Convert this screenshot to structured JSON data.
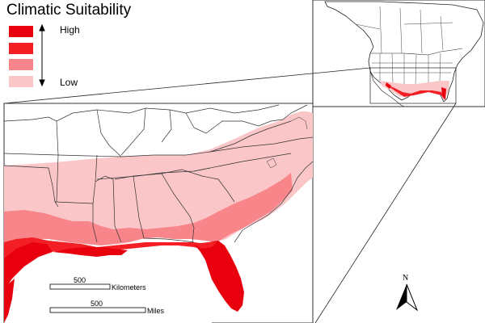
{
  "legend": {
    "title": "Climatic Suitability",
    "high_label": "High",
    "low_label": "Low",
    "classes": [
      {
        "level": "highest",
        "color": "#e8000e"
      },
      {
        "level": "high",
        "color": "#f31f25"
      },
      {
        "level": "medium",
        "color": "#f7858a"
      },
      {
        "level": "low",
        "color": "#fbc6c8"
      }
    ]
  },
  "scale_bar": {
    "km_value": "500",
    "km_unit": "Kilometers",
    "mi_value": "500",
    "mi_unit": "Miles"
  },
  "north_arrow": {
    "label": "N"
  },
  "colors": {
    "background": "#ffffff",
    "boundary": "#404040",
    "land_unsuitable": "#ffffff"
  }
}
